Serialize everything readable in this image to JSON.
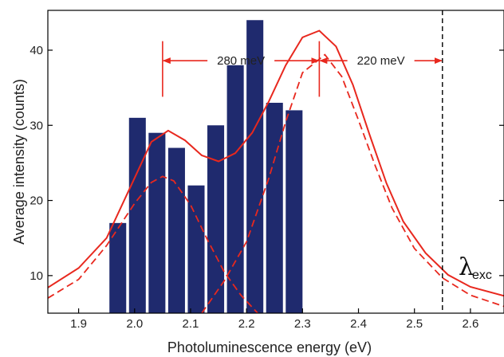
{
  "chart_data": {
    "type": "bar",
    "xlabel": "Photoluminescence energy (eV)",
    "ylabel": "Average intensity (counts)",
    "xlim": [
      1.845,
      2.66
    ],
    "ylim": [
      5,
      45.3
    ],
    "x_ticks": [
      1.9,
      2.0,
      2.1,
      2.2,
      2.3,
      2.4,
      2.5,
      2.6
    ],
    "x_tick_labels": [
      "1.9",
      "2.0",
      "2.1",
      "2.2",
      "2.3",
      "2.4",
      "2.5",
      "2.6"
    ],
    "y_ticks": [
      10,
      20,
      30,
      40
    ],
    "y_tick_labels": [
      "10",
      "20",
      "30",
      "40"
    ],
    "bar_width": 0.03,
    "bars": [
      {
        "x": 1.97,
        "value": 17
      },
      {
        "x": 2.005,
        "value": 31
      },
      {
        "x": 2.04,
        "value": 29
      },
      {
        "x": 2.075,
        "value": 27
      },
      {
        "x": 2.11,
        "value": 22
      },
      {
        "x": 2.145,
        "value": 30
      },
      {
        "x": 2.18,
        "value": 38
      },
      {
        "x": 2.215,
        "value": 44
      },
      {
        "x": 2.25,
        "value": 33
      },
      {
        "x": 2.285,
        "value": 32
      }
    ],
    "bar_color": "#1f2a6e",
    "fit_color": "#e8281e",
    "fit_total_points": [
      [
        1.845,
        8.4
      ],
      [
        1.9,
        11.0
      ],
      [
        1.95,
        15.0
      ],
      [
        2.0,
        23.0
      ],
      [
        2.03,
        27.8
      ],
      [
        2.06,
        29.3
      ],
      [
        2.09,
        28.0
      ],
      [
        2.12,
        26.0
      ],
      [
        2.15,
        25.2
      ],
      [
        2.18,
        26.3
      ],
      [
        2.21,
        29.0
      ],
      [
        2.24,
        33.2
      ],
      [
        2.27,
        38.0
      ],
      [
        2.3,
        41.7
      ],
      [
        2.33,
        42.6
      ],
      [
        2.36,
        40.5
      ],
      [
        2.39,
        35.4
      ],
      [
        2.42,
        28.7
      ],
      [
        2.45,
        22.3
      ],
      [
        2.48,
        17.2
      ],
      [
        2.52,
        13.0
      ],
      [
        2.56,
        10.1
      ],
      [
        2.6,
        8.5
      ],
      [
        2.66,
        7.3
      ]
    ],
    "fit_component1_points": [
      [
        1.845,
        7.0
      ],
      [
        1.9,
        9.5
      ],
      [
        1.95,
        14.0
      ],
      [
        2.0,
        19.6
      ],
      [
        2.03,
        22.4
      ],
      [
        2.05,
        23.2
      ],
      [
        2.07,
        22.6
      ],
      [
        2.1,
        19.4
      ],
      [
        2.13,
        14.8
      ],
      [
        2.16,
        10.5
      ],
      [
        2.19,
        7.4
      ],
      [
        2.22,
        5.0
      ]
    ],
    "fit_component2_points": [
      [
        2.12,
        5.0
      ],
      [
        2.16,
        9.3
      ],
      [
        2.2,
        14.5
      ],
      [
        2.24,
        23.0
      ],
      [
        2.27,
        30.5
      ],
      [
        2.3,
        37.0
      ],
      [
        2.34,
        39.4
      ],
      [
        2.37,
        36.5
      ],
      [
        2.4,
        30.7
      ],
      [
        2.43,
        24.6
      ],
      [
        2.46,
        19.0
      ],
      [
        2.5,
        13.6
      ],
      [
        2.55,
        9.7
      ],
      [
        2.6,
        7.4
      ],
      [
        2.66,
        5.9
      ]
    ],
    "peak_markers": [
      2.05,
      2.33
    ],
    "excitation_energy": 2.55,
    "annotations": [
      {
        "text": "280 meV",
        "from": 2.05,
        "to": 2.33,
        "y": 38.6
      },
      {
        "text": "220 meV",
        "from": 2.33,
        "to": 2.55,
        "y": 38.6
      }
    ],
    "excitation_label": {
      "symbol": "λ",
      "subscript": "exc"
    }
  }
}
